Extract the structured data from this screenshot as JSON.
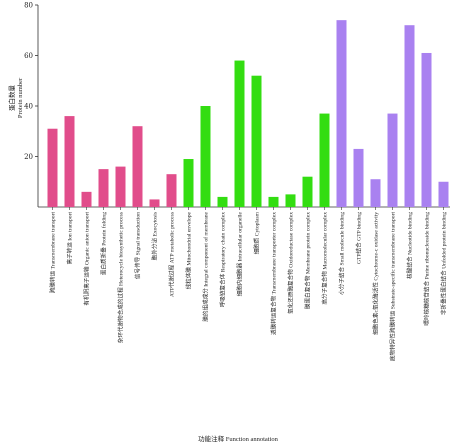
{
  "chart_data": {
    "type": "bar",
    "title": "",
    "ylabel_cn": "蛋白数量",
    "ylabel_en": "Protein number",
    "xlabel": "功能注释 Function annotation",
    "ylim": [
      0,
      80
    ],
    "yticks": [
      20,
      40,
      60,
      80
    ],
    "grid": false,
    "categories": [
      "跨膜转运 Transmembrane transport",
      "离子转运 Ion transport",
      "有机阴离子运输 Organic anion transport",
      "蛋白质折叠 Protein folding",
      "杂环代谢物合成的过程 Heterocycle biosynthetic process",
      "信号传导 Signal transduction",
      "胞外分泌 Exocytosis",
      "ATP代谢过程 ATP metabolic process",
      "线粒体膜 Mitochondrial envelope",
      "膜的组成成分 Integral component of membrane",
      "呼吸链复合体 Respiratory chain complex",
      "细胞内细胞器 Intracellular organelle",
      "细胞质 Cytoplasm",
      "透膜转运复合物 Transmembrane transporter complex",
      "氧化还原酶复合物 Oxidoreductase complex",
      "膜蛋白复合物 Membrane protein complex",
      "高分子复合物 Macromolecular complex",
      "小分子结合 Small molecule binding",
      "GTP结合 GTP binding",
      "细胞色素c氧化酶活性 Cytochrome-c oxidase activity",
      "底物特异性跨膜转运 Substrate-specific transmembrane transport",
      "核酸结合 Nucleotide binding",
      "嘌呤核糖核苷结合 Purine ribonucleoside binding",
      "非折叠性蛋白结合 Unfolded protein binding"
    ],
    "values": [
      31,
      36,
      6,
      15,
      16,
      32,
      3,
      13,
      19,
      40,
      4,
      58,
      52,
      4,
      5,
      12,
      37,
      74,
      23,
      11,
      37,
      72,
      61,
      10
    ],
    "groups": [
      {
        "color": "#e14d8b",
        "start": 0,
        "end": 7
      },
      {
        "color": "#33dd11",
        "start": 8,
        "end": 16
      },
      {
        "color": "#a981f0",
        "start": 17,
        "end": 23
      }
    ]
  }
}
